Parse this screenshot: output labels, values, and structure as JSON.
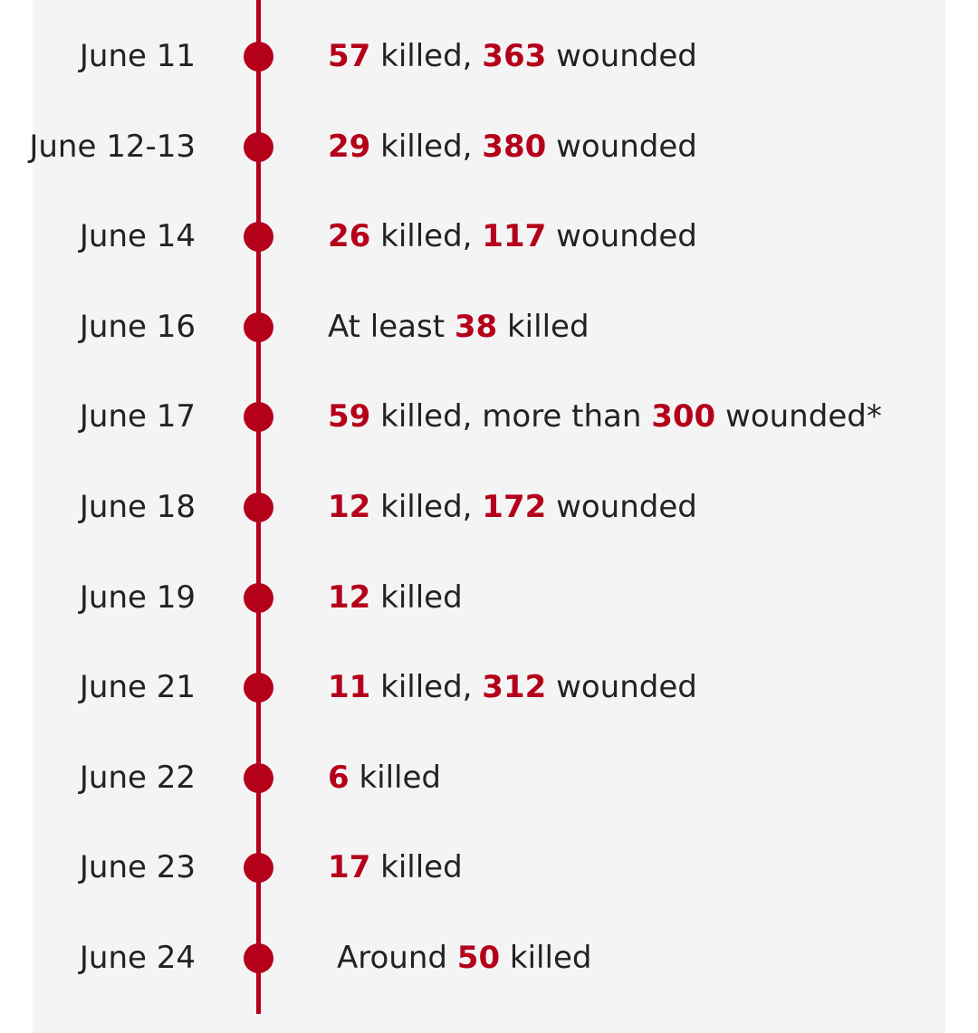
{
  "accent_color": "#b5001a",
  "timeline": [
    {
      "date": "June 11",
      "parts": [
        {
          "text": "57",
          "bold": true
        },
        {
          "text": " killed, "
        },
        {
          "text": "363",
          "bold": true
        },
        {
          "text": " wounded"
        }
      ]
    },
    {
      "date": "June 12-13",
      "parts": [
        {
          "text": "29",
          "bold": true
        },
        {
          "text": " killed, "
        },
        {
          "text": "380",
          "bold": true
        },
        {
          "text": " wounded"
        }
      ]
    },
    {
      "date": "June 14",
      "parts": [
        {
          "text": "26",
          "bold": true
        },
        {
          "text": " killed, "
        },
        {
          "text": "117",
          "bold": true
        },
        {
          "text": " wounded"
        }
      ]
    },
    {
      "date": "June 16",
      "parts": [
        {
          "text": "At least "
        },
        {
          "text": "38",
          "bold": true
        },
        {
          "text": " killed"
        }
      ]
    },
    {
      "date": "June 17",
      "parts": [
        {
          "text": "59",
          "bold": true
        },
        {
          "text": " killed, more than "
        },
        {
          "text": "300",
          "bold": true
        },
        {
          "text": " wounded*"
        }
      ]
    },
    {
      "date": "June 18",
      "parts": [
        {
          "text": "12",
          "bold": true
        },
        {
          "text": " killed, "
        },
        {
          "text": "172",
          "bold": true
        },
        {
          "text": " wounded"
        }
      ]
    },
    {
      "date": "June 19",
      "parts": [
        {
          "text": "12",
          "bold": true
        },
        {
          "text": " killed"
        }
      ]
    },
    {
      "date": "June 21",
      "parts": [
        {
          "text": "11",
          "bold": true
        },
        {
          "text": " killed, "
        },
        {
          "text": "312",
          "bold": true
        },
        {
          "text": " wounded"
        }
      ]
    },
    {
      "date": "June 22",
      "parts": [
        {
          "text": "6",
          "bold": true
        },
        {
          "text": " killed"
        }
      ]
    },
    {
      "date": "June 23",
      "parts": [
        {
          "text": "17",
          "bold": true
        },
        {
          "text": " killed"
        }
      ]
    },
    {
      "date": "June 24",
      "parts": [
        {
          "text": "Around "
        },
        {
          "text": "50",
          "bold": true
        },
        {
          "text": " killed"
        }
      ]
    }
  ]
}
